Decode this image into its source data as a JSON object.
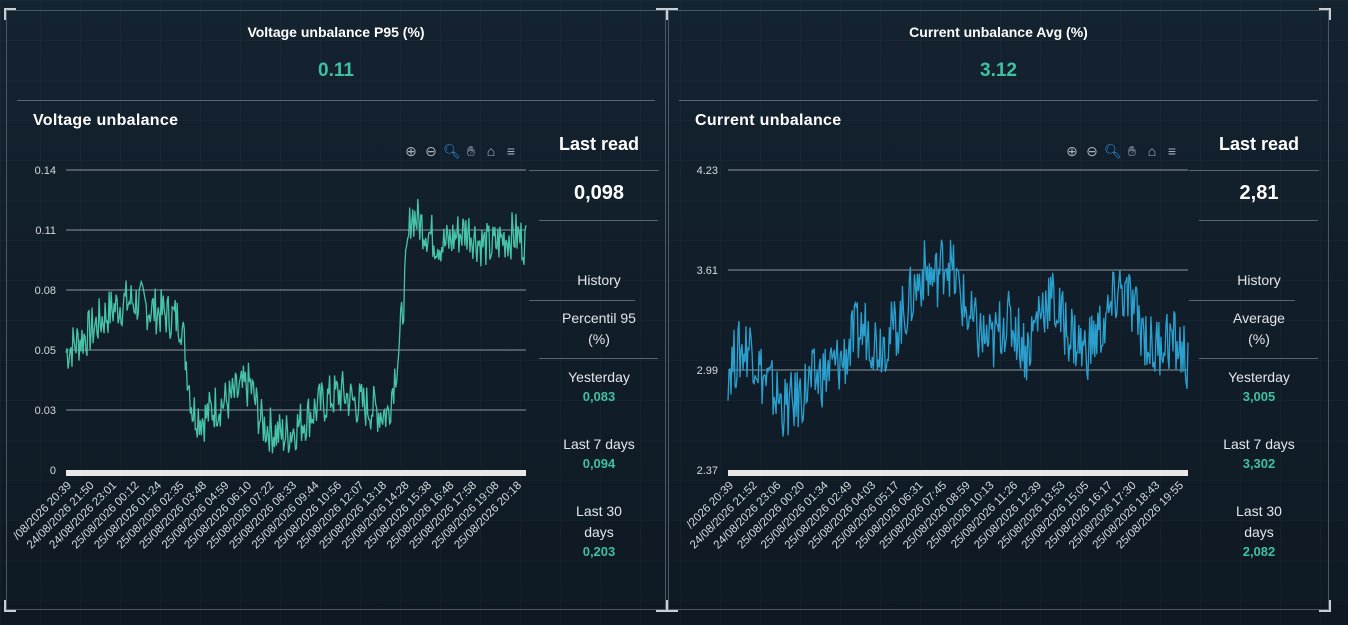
{
  "panels": [
    {
      "kpi_title": "Voltage unbalance P95 (%)",
      "kpi_value": "0.11",
      "chart_title": "Voltage unbalance",
      "last_read_label": "Last read",
      "last_read_value": "0,098",
      "history_label": "History",
      "stat_label_1": "Percentil 95",
      "stat_label_2": "(%)",
      "yesterday_label": "Yesterday",
      "yesterday_value": "0,083",
      "last7_label": "Last 7 days",
      "last7_value": "0,094",
      "last30_label_1": "Last 30",
      "last30_label_2": "days",
      "last30_value": "0,203"
    },
    {
      "kpi_title": "Current unbalance Avg (%)",
      "kpi_value": "3.12",
      "chart_title": "Current unbalance",
      "last_read_label": "Last read",
      "last_read_value": "2,81",
      "history_label": "History",
      "stat_label_1": "Average",
      "stat_label_2": "(%)",
      "yesterday_label": "Yesterday",
      "yesterday_value": "3,005",
      "last7_label": "Last 7 days",
      "last7_value": "3,302",
      "last30_label_1": "Last 30",
      "last30_label_2": "days",
      "last30_value": "2,082"
    }
  ],
  "toolbar_icons": [
    "zoom-in-icon",
    "zoom-out-icon",
    "zoom-select-icon",
    "pan-hand-icon",
    "home-icon",
    "menu-icon"
  ],
  "colors": {
    "voltage_series": "#46c4aa",
    "current_series": "#2aa0cf",
    "accent_value": "#3fc0a0"
  },
  "chart_data": [
    {
      "type": "line",
      "title": "Voltage unbalance",
      "y_ticks": [
        "0.14",
        "0.11",
        "0.08",
        "0.05",
        "0.03",
        "0"
      ],
      "ylim": [
        0,
        0.14
      ],
      "x_tick_labels": [
        "/08/2026 20:39",
        "24/08/2026 21:50",
        "24/08/2026 23:01",
        "25/08/2026 00:12",
        "25/08/2026 01:24",
        "25/08/2026 02:35",
        "25/08/2026 03:48",
        "25/08/2026 04:59",
        "25/08/2026 06:10",
        "25/08/2026 07:22",
        "25/08/2026 08:33",
        "25/08/2026 09:44",
        "25/08/2026 10:56",
        "25/08/2026 12:07",
        "25/08/2026 13:18",
        "25/08/2026 14:28",
        "25/08/2026 15:38",
        "25/08/2026 16:48",
        "25/08/2026 17:58",
        "25/08/2026 19:08",
        "25/08/2026 20:18"
      ],
      "series": [
        {
          "values": [
            0.055,
            0.06,
            0.064,
            0.07,
            0.075,
            0.078,
            0.079,
            0.076,
            0.074,
            0.072,
            0.07,
            0.028,
            0.024,
            0.03,
            0.032,
            0.036,
            0.04,
            0.022,
            0.018,
            0.016,
            0.02,
            0.025,
            0.03,
            0.034,
            0.036,
            0.032,
            0.03,
            0.028,
            0.026,
            0.058,
            0.12,
            0.114,
            0.108,
            0.105,
            0.11,
            0.112,
            0.106,
            0.104,
            0.108,
            0.11,
            0.106
          ]
        }
      ]
    },
    {
      "type": "line",
      "title": "Current unbalance",
      "y_ticks": [
        "4.23",
        "3.61",
        "2.99",
        "2.37"
      ],
      "ylim": [
        2.37,
        4.23
      ],
      "x_tick_labels": [
        "/2026 20:39",
        "24/08/2026 21:52",
        "24/08/2026 23:06",
        "25/08/2026 00:20",
        "25/08/2026 01:34",
        "25/08/2026 02:49",
        "25/08/2026 04:03",
        "25/08/2026 05:17",
        "25/08/2026 06:31",
        "25/08/2026 07:45",
        "25/08/2026 08:59",
        "25/08/2026 10:13",
        "25/08/2026 11:26",
        "25/08/2026 12:39",
        "25/08/2026 13:53",
        "25/08/2026 15:05",
        "25/08/2026 16:17",
        "25/08/2026 17:30",
        "25/08/2026 18:43",
        "25/08/2026 19:55"
      ],
      "series": [
        {
          "values": [
            3.0,
            3.1,
            3.15,
            2.95,
            2.85,
            2.75,
            2.8,
            2.9,
            2.95,
            3.0,
            3.05,
            3.2,
            3.25,
            3.15,
            3.2,
            3.3,
            3.45,
            3.6,
            3.55,
            3.7,
            3.5,
            3.3,
            3.2,
            3.15,
            3.3,
            3.25,
            3.1,
            3.35,
            3.45,
            3.3,
            3.2,
            3.1,
            3.2,
            3.3,
            3.5,
            3.4,
            3.25,
            3.1,
            3.2,
            3.15,
            3.05
          ]
        }
      ]
    }
  ]
}
